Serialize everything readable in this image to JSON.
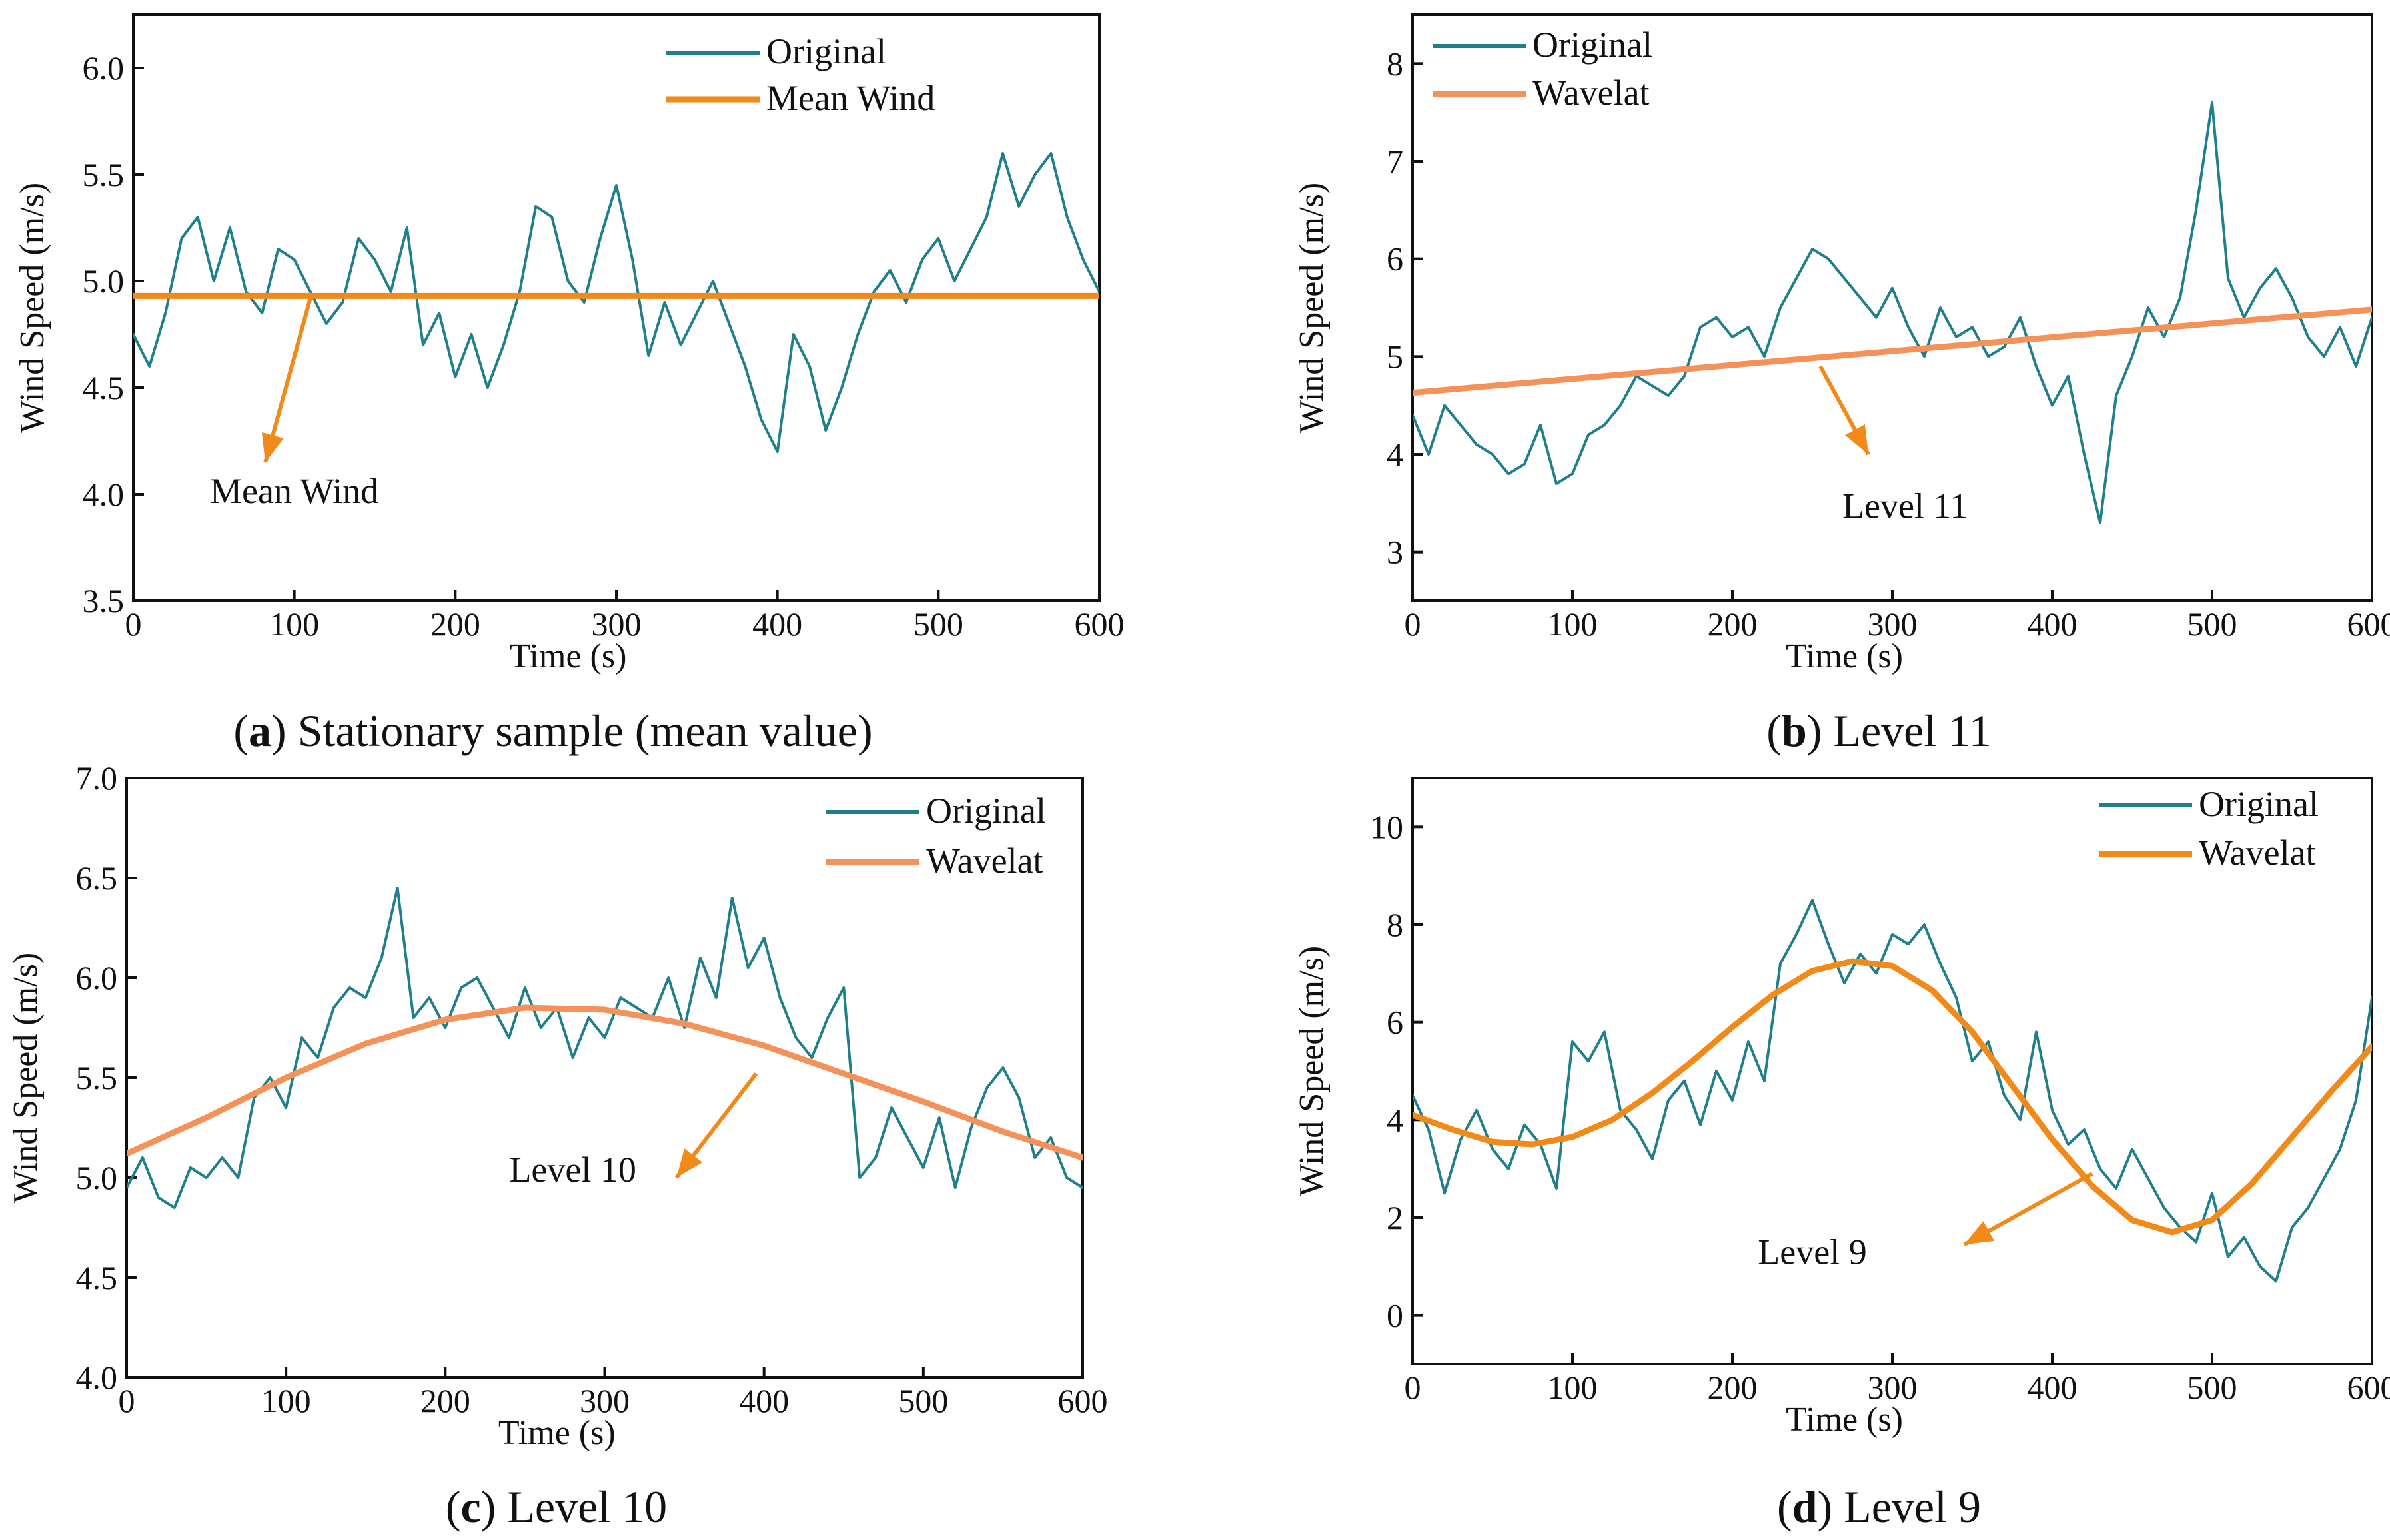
{
  "figure": {
    "colors": {
      "original": "#1f7f8c",
      "orange_dark": "#f28a1a",
      "orange_light": "#f4925a",
      "axis": "#111111"
    }
  },
  "chart_data": [
    {
      "id": "a",
      "type": "line",
      "caption_letter": "a",
      "caption_text": " Stationary sample (mean value)",
      "xlabel": "Time (s)",
      "ylabel": "Wind Speed (m/s)",
      "xlim": [
        0,
        600
      ],
      "ylim": [
        3.5,
        6.25
      ],
      "xticks": [
        0,
        100,
        200,
        300,
        400,
        500,
        600
      ],
      "xtick_labels": [
        "0",
        "100",
        "200",
        "300",
        "400",
        "500",
        "600"
      ],
      "yticks": [
        3.5,
        4.0,
        4.5,
        5.0,
        5.5,
        6.0
      ],
      "ytick_labels": [
        "3.5",
        "4.0",
        "4.5",
        "5.0",
        "5.5",
        "6.0"
      ],
      "legend_position": "top-right",
      "legend": [
        "Original",
        "Mean Wind"
      ],
      "annotation": {
        "text": "Mean Wind",
        "arrow_from": [
          110,
          4.92
        ],
        "arrow_to": [
          82,
          4.15
        ],
        "text_at": [
          100,
          3.96
        ]
      },
      "series": [
        {
          "name": "Original",
          "color": "#1f7f8c",
          "x": [
            0,
            10,
            20,
            30,
            40,
            50,
            60,
            70,
            80,
            90,
            100,
            110,
            120,
            130,
            140,
            150,
            160,
            170,
            180,
            190,
            200,
            210,
            220,
            230,
            240,
            250,
            260,
            270,
            280,
            290,
            300,
            310,
            320,
            330,
            340,
            350,
            360,
            370,
            380,
            390,
            400,
            410,
            420,
            430,
            440,
            450,
            460,
            470,
            480,
            490,
            500,
            510,
            520,
            530,
            540,
            550,
            560,
            570,
            580,
            590,
            600
          ],
          "values": [
            4.75,
            4.6,
            4.85,
            5.2,
            5.3,
            5.0,
            5.25,
            4.95,
            4.85,
            5.15,
            5.1,
            4.95,
            4.8,
            4.9,
            5.2,
            5.1,
            4.95,
            5.25,
            4.7,
            4.85,
            4.55,
            4.75,
            4.5,
            4.7,
            4.95,
            5.35,
            5.3,
            5.0,
            4.9,
            5.2,
            5.45,
            5.1,
            4.65,
            4.9,
            4.7,
            4.85,
            5.0,
            4.8,
            4.6,
            4.35,
            4.2,
            4.75,
            4.6,
            4.3,
            4.5,
            4.75,
            4.95,
            5.05,
            4.9,
            5.1,
            5.2,
            5.0,
            5.15,
            5.3,
            5.6,
            5.35,
            5.5,
            5.6,
            5.3,
            5.1,
            4.95
          ]
        },
        {
          "name": "Mean Wind",
          "color": "#f28a1a",
          "x": [
            0,
            600
          ],
          "values": [
            4.93,
            4.93
          ]
        }
      ]
    },
    {
      "id": "b",
      "type": "line",
      "caption_letter": "b",
      "caption_text": " Level 11",
      "xlabel": "Time (s)",
      "ylabel": "Wind Speed (m/s)",
      "xlim": [
        0,
        600
      ],
      "ylim": [
        2.5,
        8.5
      ],
      "xticks": [
        0,
        100,
        200,
        300,
        400,
        500,
        600
      ],
      "xtick_labels": [
        "0",
        "100",
        "200",
        "300",
        "400",
        "500",
        "600"
      ],
      "yticks": [
        3,
        4,
        5,
        6,
        7,
        8
      ],
      "ytick_labels": [
        "3",
        "4",
        "5",
        "6",
        "7",
        "8"
      ],
      "legend_position": "top-left",
      "legend": [
        "Original",
        "Wavelat"
      ],
      "annotation": {
        "text": "Level 11",
        "arrow_from": [
          255,
          4.9
        ],
        "arrow_to": [
          285,
          4.0
        ],
        "text_at": [
          308,
          3.35
        ]
      },
      "series": [
        {
          "name": "Original",
          "color": "#1f7f8c",
          "x": [
            0,
            10,
            20,
            30,
            40,
            50,
            60,
            70,
            80,
            90,
            100,
            110,
            120,
            130,
            140,
            150,
            160,
            170,
            180,
            190,
            200,
            210,
            220,
            230,
            240,
            250,
            260,
            270,
            280,
            290,
            300,
            310,
            320,
            330,
            340,
            350,
            360,
            370,
            380,
            390,
            400,
            410,
            420,
            430,
            440,
            450,
            460,
            470,
            480,
            490,
            500,
            510,
            520,
            530,
            540,
            550,
            560,
            570,
            580,
            590,
            600
          ],
          "values": [
            4.4,
            4.0,
            4.5,
            4.3,
            4.1,
            4.0,
            3.8,
            3.9,
            4.3,
            3.7,
            3.8,
            4.2,
            4.3,
            4.5,
            4.8,
            4.7,
            4.6,
            4.8,
            5.3,
            5.4,
            5.2,
            5.3,
            5.0,
            5.5,
            5.8,
            6.1,
            6.0,
            5.8,
            5.6,
            5.4,
            5.7,
            5.3,
            5.0,
            5.5,
            5.2,
            5.3,
            5.0,
            5.1,
            5.4,
            4.9,
            4.5,
            4.8,
            4.0,
            3.3,
            4.6,
            5.0,
            5.5,
            5.2,
            5.6,
            6.5,
            7.6,
            5.8,
            5.4,
            5.7,
            5.9,
            5.6,
            5.2,
            5.0,
            5.3,
            4.9,
            5.4
          ]
        },
        {
          "name": "Wavelat",
          "color": "#f4925a",
          "x": [
            0,
            600
          ],
          "values": [
            4.63,
            5.48
          ]
        }
      ]
    },
    {
      "id": "c",
      "type": "line",
      "caption_letter": "c",
      "caption_text": " Level 10",
      "xlabel": "Time (s)",
      "ylabel": "Wind Speed (m/s)",
      "xlim": [
        0,
        600
      ],
      "ylim": [
        4.0,
        7.0
      ],
      "xticks": [
        0,
        100,
        200,
        300,
        400,
        500,
        600
      ],
      "xtick_labels": [
        "0",
        "100",
        "200",
        "300",
        "400",
        "500",
        "600"
      ],
      "yticks": [
        4.0,
        4.5,
        5.0,
        5.5,
        6.0,
        6.5,
        7.0
      ],
      "ytick_labels": [
        "4.0",
        "4.5",
        "5.0",
        "5.5",
        "6.0",
        "6.5",
        "7.0"
      ],
      "legend_position": "top-right",
      "legend": [
        "Original",
        "Wavelat"
      ],
      "annotation": {
        "text": "Level 10",
        "arrow_from": [
          395,
          5.52
        ],
        "arrow_to": [
          345,
          5.0
        ],
        "text_at": [
          280,
          4.98
        ]
      },
      "series": [
        {
          "name": "Original",
          "color": "#1f7f8c",
          "x": [
            0,
            10,
            20,
            30,
            40,
            50,
            60,
            70,
            80,
            90,
            100,
            110,
            120,
            130,
            140,
            150,
            160,
            170,
            180,
            190,
            200,
            210,
            220,
            230,
            240,
            250,
            260,
            270,
            280,
            290,
            300,
            310,
            320,
            330,
            340,
            350,
            360,
            370,
            380,
            390,
            400,
            410,
            420,
            430,
            440,
            450,
            460,
            470,
            480,
            490,
            500,
            510,
            520,
            530,
            540,
            550,
            560,
            570,
            580,
            590,
            600
          ],
          "values": [
            4.95,
            5.1,
            4.9,
            4.85,
            5.05,
            5.0,
            5.1,
            5.0,
            5.4,
            5.5,
            5.35,
            5.7,
            5.6,
            5.85,
            5.95,
            5.9,
            6.1,
            6.45,
            5.8,
            5.9,
            5.75,
            5.95,
            6.0,
            5.85,
            5.7,
            5.95,
            5.75,
            5.85,
            5.6,
            5.8,
            5.7,
            5.9,
            5.85,
            5.8,
            6.0,
            5.75,
            6.1,
            5.9,
            6.4,
            6.05,
            6.2,
            5.9,
            5.7,
            5.6,
            5.8,
            5.95,
            5.0,
            5.1,
            5.35,
            5.2,
            5.05,
            5.3,
            4.95,
            5.25,
            5.45,
            5.55,
            5.4,
            5.1,
            5.2,
            5.0,
            4.95
          ]
        },
        {
          "name": "Wavelat",
          "color": "#f4925a",
          "x": [
            0,
            50,
            100,
            150,
            200,
            250,
            300,
            350,
            400,
            450,
            500,
            550,
            600
          ],
          "values": [
            5.12,
            5.3,
            5.5,
            5.67,
            5.79,
            5.85,
            5.84,
            5.77,
            5.66,
            5.52,
            5.38,
            5.23,
            5.1
          ]
        }
      ]
    },
    {
      "id": "d",
      "type": "line",
      "caption_letter": "d",
      "caption_text": " Level 9",
      "xlabel": "Time (s)",
      "ylabel": "Wind Speed (m/s)",
      "xlim": [
        0,
        600
      ],
      "ylim": [
        -1,
        11
      ],
      "xticks": [
        0,
        100,
        200,
        300,
        400,
        500,
        600
      ],
      "xtick_labels": [
        "0",
        "100",
        "200",
        "300",
        "400",
        "500",
        "600"
      ],
      "yticks": [
        0,
        2,
        4,
        6,
        8,
        10
      ],
      "ytick_labels": [
        "0",
        "2",
        "4",
        "6",
        "8",
        "10"
      ],
      "legend_position": "top-right",
      "legend": [
        "Original",
        "Wavelat"
      ],
      "annotation": {
        "text": "Level 9",
        "arrow_from": [
          425,
          2.9
        ],
        "arrow_to": [
          345,
          1.45
        ],
        "text_at": [
          250,
          1.05
        ]
      },
      "series": [
        {
          "name": "Original",
          "color": "#1f7f8c",
          "x": [
            0,
            10,
            20,
            30,
            40,
            50,
            60,
            70,
            80,
            90,
            100,
            110,
            120,
            130,
            140,
            150,
            160,
            170,
            180,
            190,
            200,
            210,
            220,
            230,
            240,
            250,
            260,
            270,
            280,
            290,
            300,
            310,
            320,
            330,
            340,
            350,
            360,
            370,
            380,
            390,
            400,
            410,
            420,
            430,
            440,
            450,
            460,
            470,
            480,
            490,
            500,
            510,
            520,
            530,
            540,
            550,
            560,
            570,
            580,
            590,
            600
          ],
          "values": [
            4.5,
            3.8,
            2.5,
            3.6,
            4.2,
            3.4,
            3.0,
            3.9,
            3.5,
            2.6,
            5.6,
            5.2,
            5.8,
            4.2,
            3.8,
            3.2,
            4.4,
            4.8,
            3.9,
            5.0,
            4.4,
            5.6,
            4.8,
            7.2,
            7.8,
            8.5,
            7.6,
            6.8,
            7.4,
            7.0,
            7.8,
            7.6,
            8.0,
            7.2,
            6.5,
            5.2,
            5.6,
            4.5,
            4.0,
            5.8,
            4.2,
            3.5,
            3.8,
            3.0,
            2.6,
            3.4,
            2.8,
            2.2,
            1.8,
            1.5,
            2.5,
            1.2,
            1.6,
            1.0,
            0.7,
            1.8,
            2.2,
            2.8,
            3.4,
            4.4,
            6.5
          ]
        },
        {
          "name": "Wavelat",
          "color": "#f28a1a",
          "x": [
            0,
            25,
            50,
            75,
            100,
            125,
            150,
            175,
            200,
            225,
            250,
            275,
            300,
            325,
            350,
            375,
            400,
            425,
            450,
            475,
            500,
            525,
            550,
            575,
            600
          ],
          "values": [
            4.1,
            3.8,
            3.55,
            3.5,
            3.65,
            4.0,
            4.55,
            5.2,
            5.9,
            6.55,
            7.05,
            7.25,
            7.15,
            6.65,
            5.8,
            4.7,
            3.6,
            2.65,
            1.95,
            1.7,
            1.95,
            2.7,
            3.65,
            4.6,
            5.5
          ]
        }
      ]
    }
  ]
}
